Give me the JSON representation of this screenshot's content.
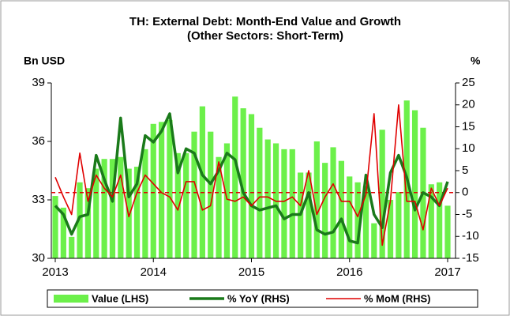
{
  "chart_data": {
    "type": "bar",
    "title": "TH: External Debt: Month-End Value and Growth",
    "subtitle": "(Other Sectors: Short-Term)",
    "ylabel": "Bn USD",
    "y2label": "%",
    "categories": [
      "2013",
      null,
      null,
      null,
      null,
      null,
      null,
      null,
      null,
      null,
      null,
      null,
      "2014",
      null,
      null,
      null,
      null,
      null,
      null,
      null,
      null,
      null,
      null,
      null,
      "2015",
      null,
      null,
      null,
      null,
      null,
      null,
      null,
      null,
      null,
      null,
      null,
      "2016",
      null,
      null,
      null,
      null,
      null,
      null,
      null,
      null,
      null,
      null,
      null,
      "2017"
    ],
    "ylim": [
      30,
      39
    ],
    "yticks": [
      30,
      33,
      36,
      39
    ],
    "y2lim": [
      -15,
      25
    ],
    "y2ticks": [
      -15,
      -10,
      -5,
      0,
      5,
      10,
      15,
      20,
      25
    ],
    "reference_line": {
      "axis": "y2",
      "value": 0,
      "color": "#e00000"
    },
    "series": [
      {
        "name": "Value (LHS)",
        "type": "bar",
        "color": "#6cf04a",
        "values": [
          33.2,
          32.6,
          31.1,
          33.9,
          33.6,
          34.6,
          35.1,
          35.1,
          35.2,
          34.6,
          34.7,
          35.6,
          36.9,
          37.0,
          37.1,
          35.4,
          35.4,
          36.5,
          37.8,
          36.5,
          35.2,
          35.9,
          38.3,
          37.7,
          37.4,
          36.7,
          36.1,
          35.9,
          35.6,
          35.6,
          34.4,
          34.4,
          36.0,
          34.9,
          35.7,
          35.0,
          34.2,
          33.9,
          33.7,
          31.8,
          36.6,
          33.0,
          33.4,
          38.1,
          37.6,
          36.7,
          33.8,
          33.9,
          32.7
        ]
      },
      {
        "name": "% YoY (RHS)",
        "type": "line",
        "axis": "y2",
        "color": "#1a7a1a",
        "values": [
          -3,
          -5,
          -9.5,
          -5.5,
          -5,
          8.5,
          3,
          -2,
          17,
          -1,
          2,
          13,
          11.5,
          14,
          18,
          4.5,
          10,
          9,
          4,
          2,
          5,
          9,
          7.5,
          0,
          -3,
          -4,
          -3.5,
          -3,
          -6,
          -5,
          -5,
          0,
          -8.5,
          -9.5,
          -9,
          -6,
          -11,
          -11.5,
          4,
          -5,
          -8,
          4.5,
          8.5,
          3.5,
          -4,
          0,
          -1,
          -3,
          2.5
        ]
      },
      {
        "name": "% MoM (RHS)",
        "type": "line",
        "axis": "y2",
        "color": "#e00000",
        "values": [
          3.5,
          -1,
          -5,
          9,
          -2,
          4,
          1,
          -1,
          4,
          -5.5,
          0,
          4,
          2,
          0,
          -1,
          -4,
          2.5,
          2.5,
          -4,
          -3,
          7,
          -1.5,
          -2,
          -1,
          -3,
          -1,
          -1,
          -2,
          -2,
          -1,
          -3,
          5,
          -5,
          -1,
          2,
          -2,
          -2,
          -5.5,
          -0.5,
          18,
          -12,
          -2,
          20,
          -2,
          -2,
          -8.5,
          1,
          -3,
          1
        ]
      }
    ]
  }
}
